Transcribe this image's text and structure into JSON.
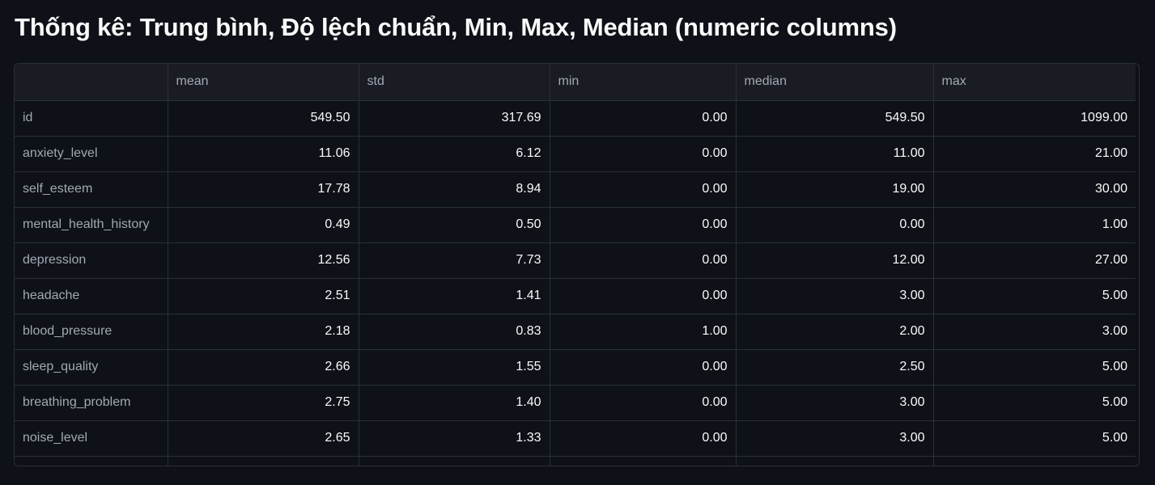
{
  "page": {
    "title": "Thống kê: Trung bình, Độ lệch chuẩn, Min, Max, Median (numeric columns)"
  },
  "table": {
    "columns": [
      "",
      "mean",
      "std",
      "min",
      "median",
      "max"
    ],
    "rows": [
      {
        "label": "id",
        "values": [
          "549.50",
          "317.69",
          "0.00",
          "549.50",
          "1099.00"
        ]
      },
      {
        "label": "anxiety_level",
        "values": [
          "11.06",
          "6.12",
          "0.00",
          "11.00",
          "21.00"
        ]
      },
      {
        "label": "self_esteem",
        "values": [
          "17.78",
          "8.94",
          "0.00",
          "19.00",
          "30.00"
        ]
      },
      {
        "label": "mental_health_history",
        "values": [
          "0.49",
          "0.50",
          "0.00",
          "0.00",
          "1.00"
        ]
      },
      {
        "label": "depression",
        "values": [
          "12.56",
          "7.73",
          "0.00",
          "12.00",
          "27.00"
        ]
      },
      {
        "label": "headache",
        "values": [
          "2.51",
          "1.41",
          "0.00",
          "3.00",
          "5.00"
        ]
      },
      {
        "label": "blood_pressure",
        "values": [
          "2.18",
          "0.83",
          "1.00",
          "2.00",
          "3.00"
        ]
      },
      {
        "label": "sleep_quality",
        "values": [
          "2.66",
          "1.55",
          "0.00",
          "2.50",
          "5.00"
        ]
      },
      {
        "label": "breathing_problem",
        "values": [
          "2.75",
          "1.40",
          "0.00",
          "3.00",
          "5.00"
        ]
      },
      {
        "label": "noise_level",
        "values": [
          "2.65",
          "1.33",
          "0.00",
          "3.00",
          "5.00"
        ]
      }
    ]
  }
}
